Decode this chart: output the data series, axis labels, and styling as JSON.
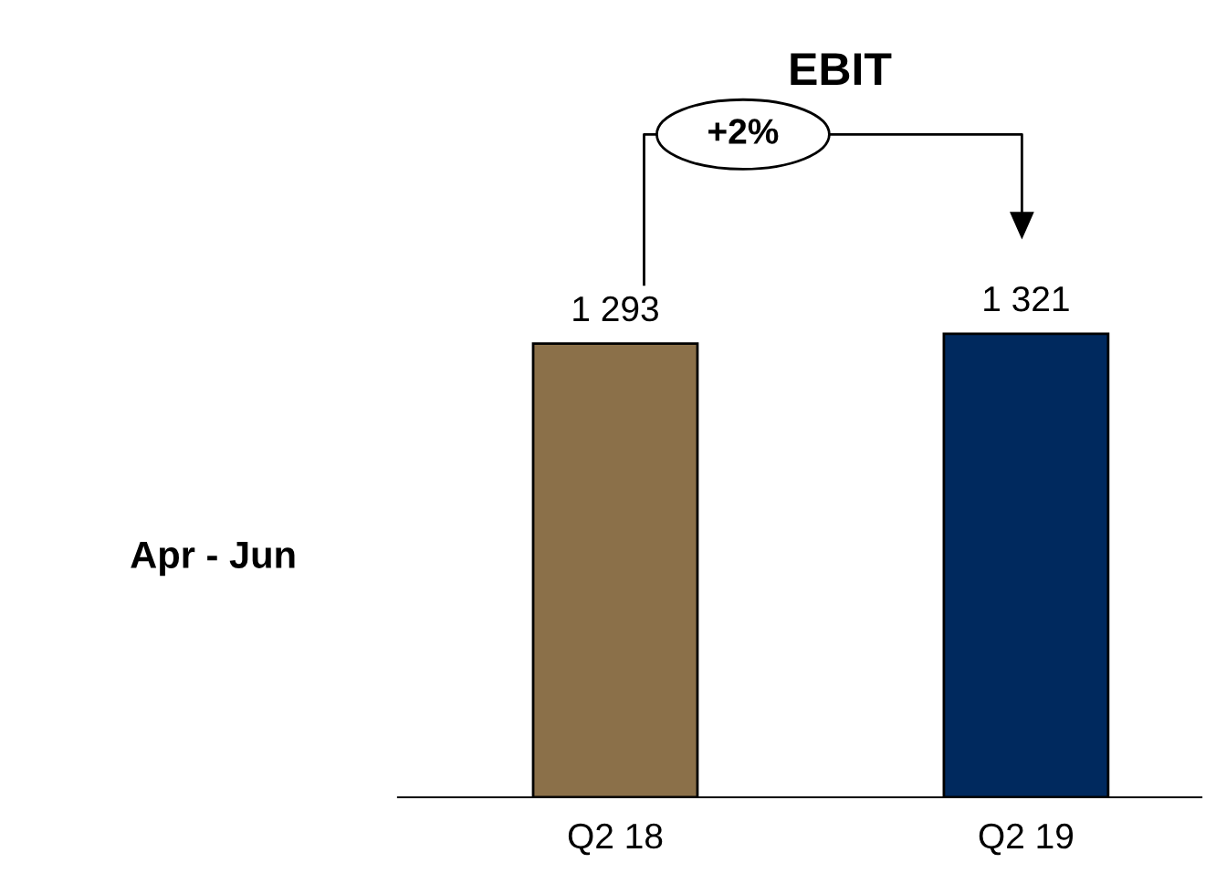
{
  "chart_data": {
    "type": "bar",
    "title": "EBIT",
    "ylabel": "Apr - Jun",
    "categories": [
      "Q2 18",
      "Q2 19"
    ],
    "values": [
      1293,
      1321
    ],
    "value_labels": [
      "1 293",
      "1 321"
    ],
    "colors": [
      "#8b7049",
      "#00295e"
    ],
    "annotations": [
      "+2%"
    ],
    "grid": false,
    "legend": false
  }
}
